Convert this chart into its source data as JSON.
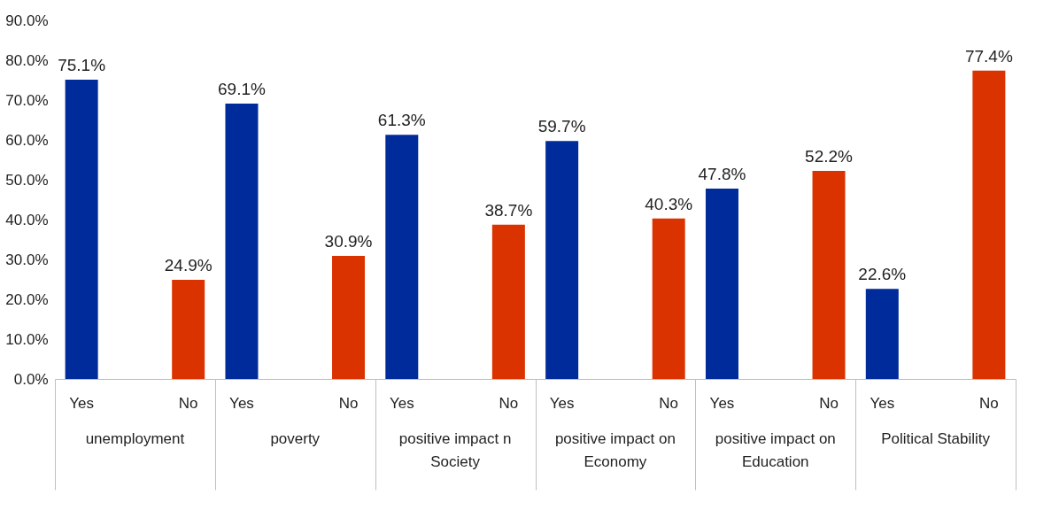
{
  "chart_data": {
    "type": "bar",
    "categories": [
      "unemployment",
      "poverty",
      "positive impact n Society",
      "positive impact on Economy",
      "positive impact on Education",
      "Political Stability"
    ],
    "series": [
      {
        "name": "Yes",
        "color": "#002b9a",
        "values": [
          75.1,
          69.1,
          61.3,
          59.7,
          47.8,
          22.6
        ],
        "value_labels": [
          "75.1%",
          "69.1%",
          "61.3%",
          "59.7%",
          "47.8%",
          "22.6%"
        ]
      },
      {
        "name": "No",
        "color": "#db3300",
        "values": [
          24.9,
          30.9,
          38.7,
          40.3,
          52.2,
          77.4
        ],
        "value_labels": [
          "24.9%",
          "30.9%",
          "38.7%",
          "40.3%",
          "52.2%",
          "77.4%"
        ]
      }
    ],
    "ylim": [
      0,
      90
    ],
    "yticks": [
      {
        "value": 0,
        "label": "0.0%"
      },
      {
        "value": 10,
        "label": "10.0%"
      },
      {
        "value": 20,
        "label": "20.0%"
      },
      {
        "value": 30,
        "label": "30.0%"
      },
      {
        "value": 40,
        "label": "40.0%"
      },
      {
        "value": 50,
        "label": "50.0%"
      },
      {
        "value": 60,
        "label": "60.0%"
      },
      {
        "value": 70,
        "label": "70.0%"
      },
      {
        "value": 80,
        "label": "80.0%"
      },
      {
        "value": 90,
        "label": "90.0%"
      }
    ],
    "grid": false,
    "legend": false
  }
}
